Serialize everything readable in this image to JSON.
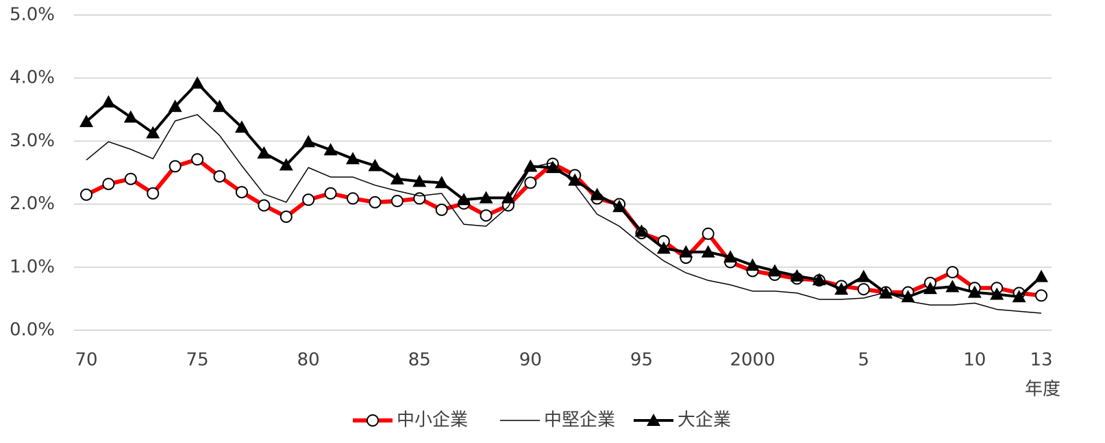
{
  "chart_data": {
    "type": "line",
    "x_label": "年度",
    "categories": [
      "70",
      null,
      null,
      null,
      null,
      "75",
      null,
      null,
      null,
      null,
      "80",
      null,
      null,
      null,
      null,
      "85",
      null,
      null,
      null,
      null,
      "90",
      null,
      null,
      null,
      null,
      "95",
      null,
      null,
      null,
      null,
      "2000",
      null,
      null,
      null,
      null,
      "5",
      null,
      null,
      null,
      null,
      "10",
      null,
      null,
      "13"
    ],
    "series": [
      {
        "name": "中小企業",
        "color": "#ff0000",
        "marker": "circle",
        "width": 6,
        "values": [
          2.15,
          2.32,
          2.4,
          2.17,
          2.6,
          2.71,
          2.44,
          2.19,
          1.98,
          1.8,
          2.07,
          2.17,
          2.09,
          2.03,
          2.05,
          2.09,
          1.91,
          2.01,
          1.82,
          1.98,
          2.34,
          2.64,
          2.46,
          2.09,
          2.0,
          1.54,
          1.41,
          1.15,
          1.53,
          1.08,
          0.94,
          0.88,
          0.82,
          0.79,
          0.7,
          0.65,
          0.6,
          0.6,
          0.75,
          0.92,
          0.67,
          0.67,
          0.59,
          0.55
        ]
      },
      {
        "name": "中堅企業",
        "color": "#000000",
        "marker": null,
        "width": 1.5,
        "values": [
          2.7,
          2.99,
          2.87,
          2.72,
          3.32,
          3.42,
          3.09,
          2.61,
          2.16,
          2.03,
          2.58,
          2.43,
          2.43,
          2.3,
          2.21,
          2.13,
          2.17,
          1.68,
          1.65,
          1.96,
          2.58,
          2.66,
          2.31,
          1.84,
          1.65,
          1.36,
          1.1,
          0.91,
          0.79,
          0.72,
          0.62,
          0.62,
          0.59,
          0.49,
          0.49,
          0.51,
          0.6,
          0.46,
          0.4,
          0.4,
          0.43,
          0.33,
          0.3,
          0.27
        ]
      },
      {
        "name": "大企業",
        "color": "#000000",
        "marker": "triangle",
        "width": 4,
        "values": [
          3.31,
          3.62,
          3.38,
          3.13,
          3.55,
          3.92,
          3.55,
          3.22,
          2.81,
          2.62,
          2.99,
          2.86,
          2.72,
          2.61,
          2.4,
          2.36,
          2.34,
          2.07,
          2.1,
          2.1,
          2.6,
          2.58,
          2.38,
          2.15,
          1.96,
          1.57,
          1.3,
          1.24,
          1.24,
          1.16,
          1.03,
          0.94,
          0.86,
          0.8,
          0.65,
          0.85,
          0.59,
          0.53,
          0.66,
          0.69,
          0.6,
          0.57,
          0.53,
          0.85
        ]
      }
    ],
    "ylim": [
      0,
      5
    ],
    "yticks": [
      {
        "value": 0,
        "label": "0.0%"
      },
      {
        "value": 1,
        "label": "1.0%"
      },
      {
        "value": 2,
        "label": "2.0%"
      },
      {
        "value": 3,
        "label": "3.0%"
      },
      {
        "value": 4,
        "label": "4.0%"
      },
      {
        "value": 5,
        "label": "5.0%"
      }
    ],
    "grid": true,
    "legend": "bottom"
  }
}
